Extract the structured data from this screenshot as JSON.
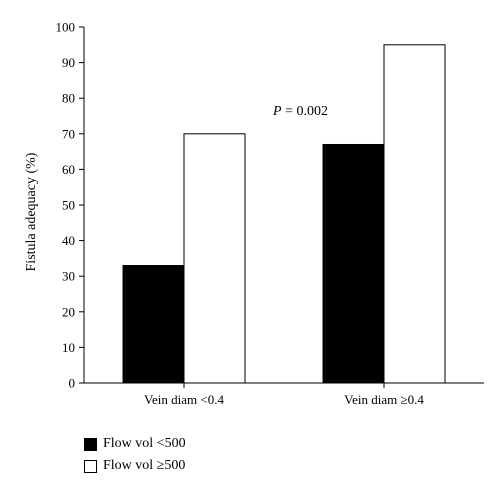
{
  "chart_data": {
    "type": "bar",
    "title": "",
    "xlabel": "",
    "ylabel": "Fistula adequacy (%)",
    "ylim": [
      0,
      100
    ],
    "yticks": [
      0,
      10,
      20,
      30,
      40,
      50,
      60,
      70,
      80,
      90,
      100
    ],
    "categories": [
      "Vein diam <0.4",
      "Vein diam ≥0.4"
    ],
    "series": [
      {
        "name": "Flow vol <500",
        "values": [
          33,
          67
        ],
        "color": "#000000"
      },
      {
        "name": "Flow vol ≥500",
        "values": [
          70,
          95
        ],
        "color": "#ffffff"
      }
    ],
    "annotation": {
      "prefix": "P",
      "text": " = 0.002"
    },
    "legend_position": "bottom-left",
    "grid": false
  }
}
